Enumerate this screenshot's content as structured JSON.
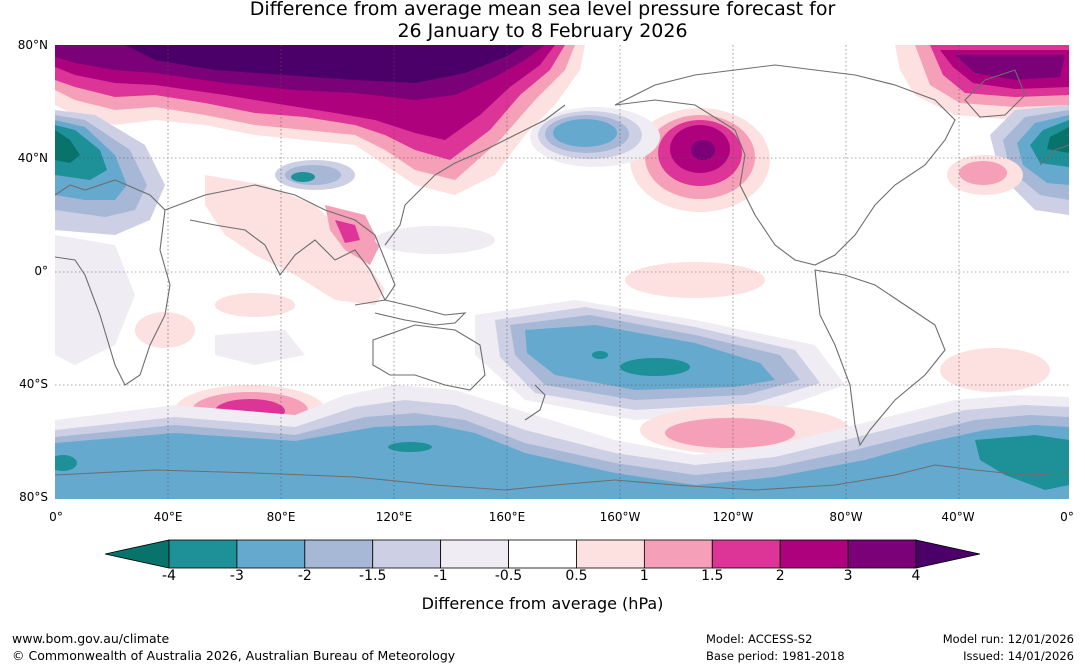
{
  "title_line1": "Difference from average mean sea level pressure forecast for",
  "title_line2": "26 January to 8 February 2026",
  "lat_labels": [
    "80°N",
    "40°N",
    "0°",
    "40°S",
    "80°S"
  ],
  "lon_labels": [
    "0°",
    "40°E",
    "80°E",
    "120°E",
    "160°E",
    "160°W",
    "120°W",
    "80°W",
    "40°W",
    "0°"
  ],
  "colorbar": {
    "tick_labels": [
      "-4",
      "-3",
      "-2",
      "-1.5",
      "-1",
      "-0.5",
      "0.5",
      "1",
      "1.5",
      "2",
      "3",
      "4"
    ],
    "low_extension_color": "#07736b",
    "high_extension_color": "#4a0068",
    "band_colors": [
      "#1d9098",
      "#66a9cf",
      "#a6b8d6",
      "#cdcfe4",
      "#efecf3",
      "#ffffff",
      "#fde0e0",
      "#f59fb8",
      "#dd3497",
      "#ae017e",
      "#7a0177"
    ],
    "title": "Difference from average (hPa)"
  },
  "footer": {
    "url": "www.bom.gov.au/climate",
    "copyright": "© Commonwealth of Australia 2026, Australian Bureau of Meteorology",
    "model": "Model: ACCESS-S2",
    "base_period": "Base period: 1981-2018",
    "model_run": "Model run: 12/01/2026",
    "issued": "Issued: 14/01/2026"
  }
}
